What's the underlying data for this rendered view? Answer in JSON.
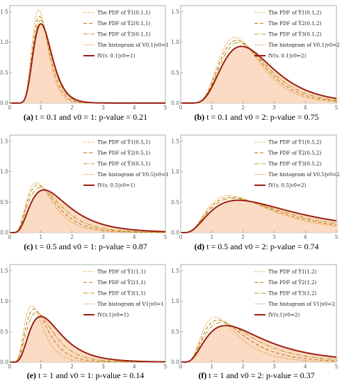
{
  "colors": {
    "hist_fill": "#fbd9c2",
    "hist_stroke": "#f3c6a3",
    "pdf_y1": "#d98b00",
    "pdf_y2": "#c67a1c",
    "pdf_y3": "#b89510",
    "theory": "#9a1f12",
    "axis": "#999999",
    "tick_text": "#666666"
  },
  "panels": [
    {
      "tag": "(a)",
      "caption": "t = 0.1 and v0 = 1: p-value = 0.21",
      "legend": [
        "The PDF of Ŷ1(0.1,1)",
        "The PDF of Ŷ2(0.1,1)",
        "The PDF of Ŷ3(0.1,1)",
        "The histogram of V0.1|v0=1",
        "fV(v, 0.1|v0=1)"
      ]
    },
    {
      "tag": "(b)",
      "caption": "t = 0.1 and v0 = 2: p-value = 0.75",
      "legend": [
        "The PDF of Ŷ1(0.1,2)",
        "The PDF of Ŷ2(0.1,2)",
        "The PDF of Ŷ3(0.1,2)",
        "The histogram of V0.1|v0=2",
        "fV(v, 0.1|v0=2)"
      ]
    },
    {
      "tag": "(c)",
      "caption": "t = 0.5 and v0 = 1: p-value = 0.87",
      "legend": [
        "The PDF of Ŷ1(0.5,1)",
        "The PDF of Ŷ2(0.5,1)",
        "The PDF of Ŷ3(0.5,1)",
        "The histogram of V0.5|v0=1",
        "fV(v, 0.5|v0=1)"
      ]
    },
    {
      "tag": "(d)",
      "caption": "t = 0.5 and v0 = 2: p-value = 0.74",
      "legend": [
        "The PDF of Ŷ1(0.5,2)",
        "The PDF of Ŷ2(0.5,2)",
        "The PDF of Ŷ3(0.5,2)",
        "The histogram of V0.5|v0=2",
        "fV(v, 0.5|v0=2)"
      ]
    },
    {
      "tag": "(e)",
      "caption": "t = 1 and v0 = 1: p-value = 0.14",
      "legend": [
        "The PDF of Ŷ1(1,1)",
        "The PDF of Ŷ2(1,1)",
        "The PDF of Ŷ3(1,1)",
        "The histogram of V1|v0=1",
        "fV(v,1|v0=1)"
      ]
    },
    {
      "tag": "(f)",
      "caption": "t = 1 and v0 = 2: p-value = 0.37",
      "legend": [
        "The PDF of Ŷ1(1,2)",
        "The PDF of Ŷ2(1,2)",
        "The PDF of Ŷ3(1,2)",
        "The histogram of V1|v0=2",
        "fV(v,1|v0=2)"
      ]
    }
  ],
  "chart_data": [
    {
      "type": "line",
      "xlim": [
        0,
        5
      ],
      "ylim": [
        0,
        1.6
      ],
      "x_ticks": [
        "0",
        "1",
        "2",
        "3",
        "4",
        "5"
      ],
      "y_ticks": [
        "0.0",
        "0.5",
        "1.0",
        "1.5"
      ],
      "series": [
        {
          "name": "The PDF of Ŷ1(0.1,1)",
          "style": "dotted",
          "mode": 0.93,
          "peak": 1.53,
          "sigma": 0.27
        },
        {
          "name": "The PDF of Ŷ2(0.1,1)",
          "style": "dashed",
          "mode": 0.96,
          "peak": 1.42,
          "sigma": 0.28
        },
        {
          "name": "The PDF of Ŷ3(0.1,1)",
          "style": "dashdot",
          "mode": 0.99,
          "peak": 1.36,
          "sigma": 0.29
        },
        {
          "name": "The histogram of V0.1|v0=1",
          "style": "histogram",
          "mode": 1.0,
          "peak": 1.3,
          "sigma": 0.3
        },
        {
          "name": "fV(v, 0.1|v0=1)",
          "style": "solid",
          "mode": 1.0,
          "peak": 1.3,
          "sigma": 0.3
        }
      ]
    },
    {
      "type": "line",
      "xlim": [
        0,
        5
      ],
      "ylim": [
        0,
        1.6
      ],
      "x_ticks": [
        "0",
        "1",
        "2",
        "3",
        "4",
        "5"
      ],
      "y_ticks": [
        "0.0",
        "0.5",
        "1.0",
        "1.5"
      ],
      "series": [
        {
          "name": "The PDF of Ŷ1(0.1,2)",
          "style": "dotted",
          "mode": 1.74,
          "peak": 1.08,
          "sigma": 0.38
        },
        {
          "name": "The PDF of Ŷ2(0.1,2)",
          "style": "dashed",
          "mode": 1.8,
          "peak": 1.03,
          "sigma": 0.39
        },
        {
          "name": "The PDF of Ŷ3(0.1,2)",
          "style": "dashdot",
          "mode": 1.86,
          "peak": 0.99,
          "sigma": 0.4
        },
        {
          "name": "The histogram of V0.1|v0=2",
          "style": "histogram",
          "mode": 1.95,
          "peak": 0.93,
          "sigma": 0.42
        },
        {
          "name": "fV(v, 0.1|v0=2)",
          "style": "solid",
          "mode": 1.95,
          "peak": 0.93,
          "sigma": 0.42
        }
      ]
    },
    {
      "type": "line",
      "xlim": [
        0,
        5
      ],
      "ylim": [
        0,
        1.6
      ],
      "x_ticks": [
        "0",
        "1",
        "2",
        "3",
        "4",
        "5"
      ],
      "y_ticks": [
        "0.0",
        "0.5",
        "1.0",
        "1.5"
      ],
      "series": [
        {
          "name": "The PDF of Ŷ1(0.5,1)",
          "style": "dotted",
          "mode": 0.85,
          "peak": 0.82,
          "sigma": 0.48
        },
        {
          "name": "The PDF of Ŷ2(0.5,1)",
          "style": "dashed",
          "mode": 0.9,
          "peak": 0.78,
          "sigma": 0.5
        },
        {
          "name": "The PDF of Ŷ3(0.5,1)",
          "style": "dashdot",
          "mode": 0.97,
          "peak": 0.74,
          "sigma": 0.52
        },
        {
          "name": "The histogram of V0.5|v0=1",
          "style": "histogram",
          "mode": 1.1,
          "peak": 0.7,
          "sigma": 0.55
        },
        {
          "name": "fV(v, 0.5|v0=1)",
          "style": "solid",
          "mode": 1.1,
          "peak": 0.7,
          "sigma": 0.55
        }
      ]
    },
    {
      "type": "line",
      "xlim": [
        0,
        5
      ],
      "ylim": [
        0,
        1.6
      ],
      "x_ticks": [
        "0",
        "1",
        "2",
        "3",
        "4",
        "5"
      ],
      "y_ticks": [
        "0.0",
        "0.5",
        "1.0",
        "1.5"
      ],
      "series": [
        {
          "name": "The PDF of Ŷ1(0.5,2)",
          "style": "dotted",
          "mode": 1.55,
          "peak": 0.61,
          "sigma": 0.62
        },
        {
          "name": "The PDF of Ŷ2(0.5,2)",
          "style": "dashed",
          "mode": 1.62,
          "peak": 0.58,
          "sigma": 0.64
        },
        {
          "name": "The PDF of Ŷ3(0.5,2)",
          "style": "dashdot",
          "mode": 1.7,
          "peak": 0.56,
          "sigma": 0.66
        },
        {
          "name": "The histogram of V0.5|v0=2",
          "style": "histogram",
          "mode": 1.85,
          "peak": 0.53,
          "sigma": 0.7
        },
        {
          "name": "fV(v, 0.5|v0=2)",
          "style": "solid",
          "mode": 1.85,
          "peak": 0.53,
          "sigma": 0.7
        }
      ]
    },
    {
      "type": "line",
      "xlim": [
        0,
        5
      ],
      "ylim": [
        0,
        1.6
      ],
      "x_ticks": [
        "0",
        "1",
        "2",
        "3",
        "4",
        "5"
      ],
      "y_ticks": [
        "0.0",
        "0.5",
        "1.0",
        "1.5"
      ],
      "series": [
        {
          "name": "The PDF of Ŷ1(1,1)",
          "style": "dotted",
          "mode": 0.7,
          "peak": 0.93,
          "sigma": 0.42
        },
        {
          "name": "The PDF of Ŷ2(1,1)",
          "style": "dashed",
          "mode": 0.78,
          "peak": 0.87,
          "sigma": 0.45
        },
        {
          "name": "The PDF of Ŷ3(1,1)",
          "style": "dashdot",
          "mode": 0.86,
          "peak": 0.81,
          "sigma": 0.48
        },
        {
          "name": "The histogram of V1|v0=1",
          "style": "histogram",
          "mode": 1.0,
          "peak": 0.75,
          "sigma": 0.5
        },
        {
          "name": "fV(v,1|v0=1)",
          "style": "solid",
          "mode": 1.0,
          "peak": 0.75,
          "sigma": 0.5
        }
      ]
    },
    {
      "type": "line",
      "xlim": [
        0,
        5
      ],
      "ylim": [
        0,
        1.6
      ],
      "x_ticks": [
        "0",
        "1",
        "2",
        "3",
        "4",
        "5"
      ],
      "y_ticks": [
        "0.0",
        "0.5",
        "1.0",
        "1.5"
      ],
      "series": [
        {
          "name": "The PDF of Ŷ1(1,2)",
          "style": "dotted",
          "mode": 1.1,
          "peak": 0.74,
          "sigma": 0.5
        },
        {
          "name": "The PDF of Ŷ2(1,2)",
          "style": "dashed",
          "mode": 1.2,
          "peak": 0.69,
          "sigma": 0.54
        },
        {
          "name": "The PDF of Ŷ3(1,2)",
          "style": "dashdot",
          "mode": 1.3,
          "peak": 0.65,
          "sigma": 0.58
        },
        {
          "name": "The histogram of V1|v0=2",
          "style": "histogram",
          "mode": 1.45,
          "peak": 0.6,
          "sigma": 0.62
        },
        {
          "name": "fV(v,1|v0=2)",
          "style": "solid",
          "mode": 1.45,
          "peak": 0.6,
          "sigma": 0.62
        }
      ]
    }
  ]
}
